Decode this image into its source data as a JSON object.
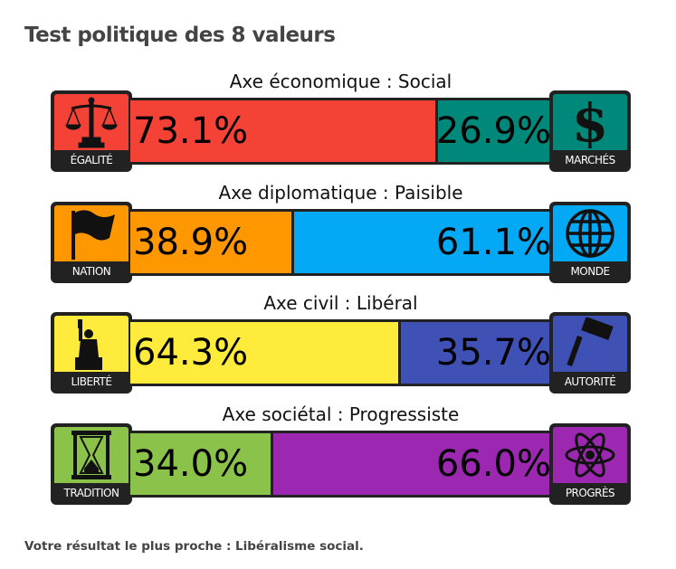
{
  "title": "Test politique des 8 valeurs",
  "footer": "Votre résultat le plus proche : Libéralisme social.",
  "chart_data": {
    "type": "bar",
    "orientation": "horizontal-stacked",
    "axes": [
      {
        "label": "Axe économique : Social",
        "left": {
          "name": "ÉGALITÉ",
          "value": 73.1,
          "text": "73.1%",
          "color": "#f44336",
          "icon": "scales-icon"
        },
        "right": {
          "name": "MARCHÉS",
          "value": 26.9,
          "text": "26.9%",
          "color": "#00897b",
          "icon": "dollar-icon"
        }
      },
      {
        "label": "Axe diplomatique : Paisible",
        "left": {
          "name": "NATION",
          "value": 38.9,
          "text": "38.9%",
          "color": "#ff9800",
          "icon": "flag-icon"
        },
        "right": {
          "name": "MONDE",
          "value": 61.1,
          "text": "61.1%",
          "color": "#03a9f4",
          "icon": "globe-icon"
        }
      },
      {
        "label": "Axe civil : Libéral",
        "left": {
          "name": "LIBERTÉ",
          "value": 64.3,
          "text": "64.3%",
          "color": "#ffeb3b",
          "icon": "statue-of-liberty-icon"
        },
        "right": {
          "name": "AUTORITÉ",
          "value": 35.7,
          "text": "35.7%",
          "color": "#3f51b5",
          "icon": "gavel-icon"
        }
      },
      {
        "label": "Axe sociétal : Progressiste",
        "left": {
          "name": "TRADITION",
          "value": 34.0,
          "text": "34.0%",
          "color": "#8bc34a",
          "icon": "hourglass-icon"
        },
        "right": {
          "name": "PROGRÈS",
          "value": 66.0,
          "text": "66.0%",
          "color": "#9c27b0",
          "icon": "atom-icon"
        }
      }
    ]
  }
}
